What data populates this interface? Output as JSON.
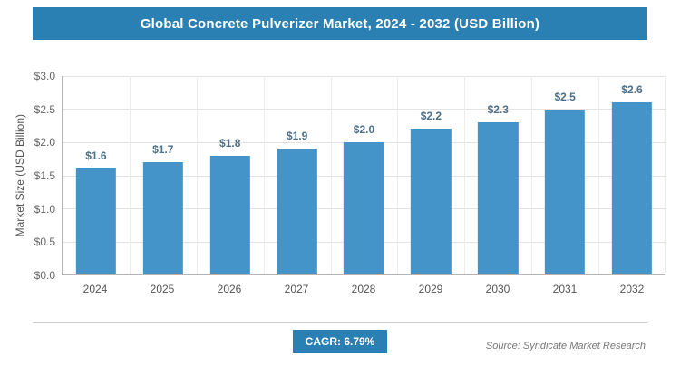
{
  "header": {
    "title": "Global Concrete Pulverizer Market, 2024 - 2032 (USD Billion)"
  },
  "chart_data": {
    "type": "bar",
    "title": "Global Concrete Pulverizer Market, 2024 - 2032 (USD Billion)",
    "categories": [
      "2024",
      "2025",
      "2026",
      "2027",
      "2028",
      "2029",
      "2030",
      "2031",
      "2032"
    ],
    "values": [
      1.6,
      1.7,
      1.8,
      1.9,
      2.0,
      2.2,
      2.3,
      2.5,
      2.6
    ],
    "value_labels": [
      "$1.6",
      "$1.7",
      "$1.8",
      "$1.9",
      "$2.0",
      "$2.2",
      "$2.3",
      "$2.5",
      "$2.6"
    ],
    "xlabel": "",
    "ylabel": "Market Size (USD Billion)",
    "ylim": [
      0,
      3.0
    ],
    "yticks": [
      0,
      0.5,
      1.0,
      1.5,
      2.0,
      2.5,
      3.0
    ],
    "ytick_labels": [
      "$0.0",
      "$0.5",
      "$1.0",
      "$1.5",
      "$2.0",
      "$2.5",
      "$3.0"
    ],
    "grid": "on",
    "legend": "none",
    "bar_color": "#4494ca",
    "label_color": "#4d6f87"
  },
  "footer": {
    "cagr_label": "CAGR: 6.79%",
    "source": "Source: Syndicate Market Research"
  },
  "colors": {
    "header_bg": "#2b80b3",
    "badge_bg": "#2b80b3",
    "axis_text": "#666666",
    "gridline": "#e3e3e3"
  }
}
